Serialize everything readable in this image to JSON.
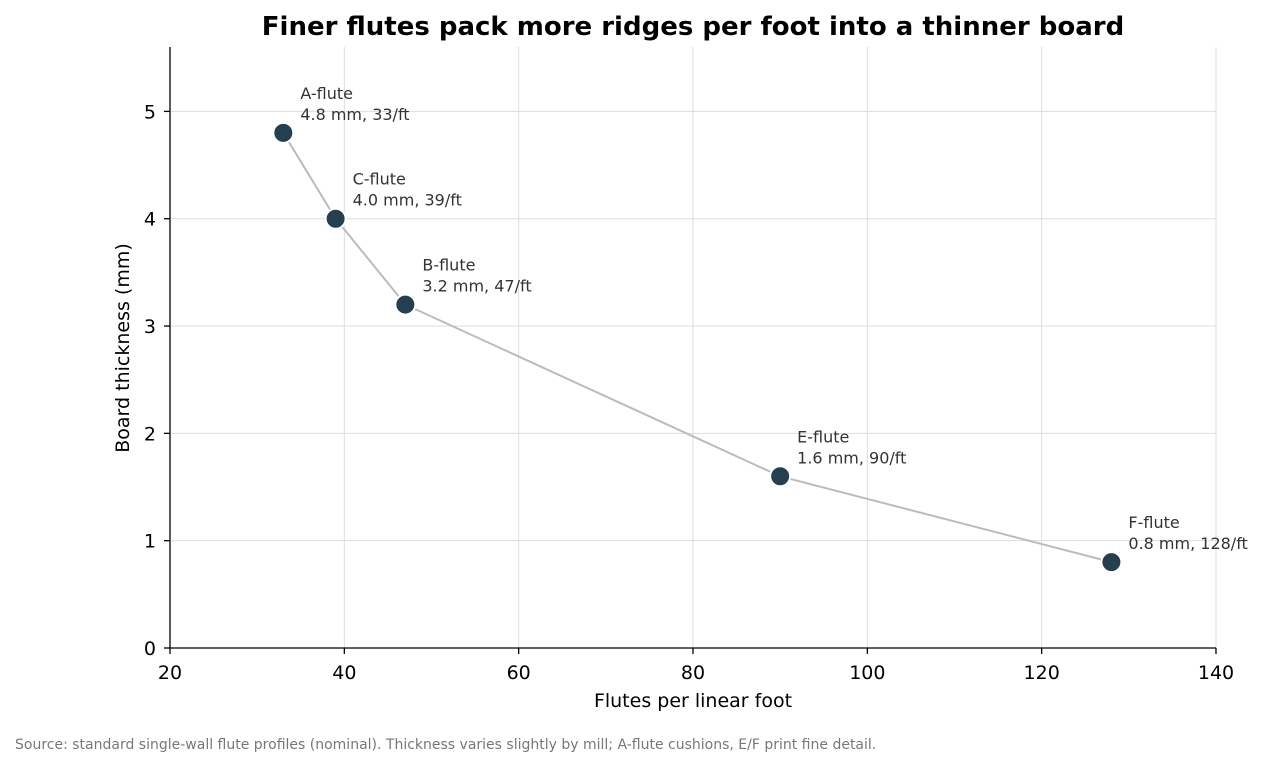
{
  "chart_data": {
    "type": "scatter",
    "title": "Finer flutes pack more ridges per foot into a thinner board",
    "xlabel": "Flutes per linear foot",
    "ylabel": "Board thickness (mm)",
    "xlim": [
      20,
      140
    ],
    "ylim": [
      0,
      5.6
    ],
    "xticks": [
      20,
      40,
      60,
      80,
      100,
      120,
      140
    ],
    "yticks": [
      0,
      1,
      2,
      3,
      4,
      5
    ],
    "grid": true,
    "connected": true,
    "colors": {
      "point": "#243f4f",
      "line": "#bbbbbb",
      "grid": "#dddddd"
    },
    "points": [
      {
        "name": "A-flute",
        "x": 33,
        "y": 4.8,
        "label": "4.8 mm, 33/ft"
      },
      {
        "name": "C-flute",
        "x": 39,
        "y": 4.0,
        "label": "4.0 mm, 39/ft"
      },
      {
        "name": "B-flute",
        "x": 47,
        "y": 3.2,
        "label": "3.2 mm, 47/ft"
      },
      {
        "name": "E-flute",
        "x": 90,
        "y": 1.6,
        "label": "1.6 mm, 90/ft"
      },
      {
        "name": "F-flute",
        "x": 128,
        "y": 0.8,
        "label": "0.8 mm, 128/ft"
      }
    ],
    "source": "Source: standard single-wall flute profiles (nominal). Thickness varies slightly by mill; A-flute cushions, E/F print fine detail."
  }
}
